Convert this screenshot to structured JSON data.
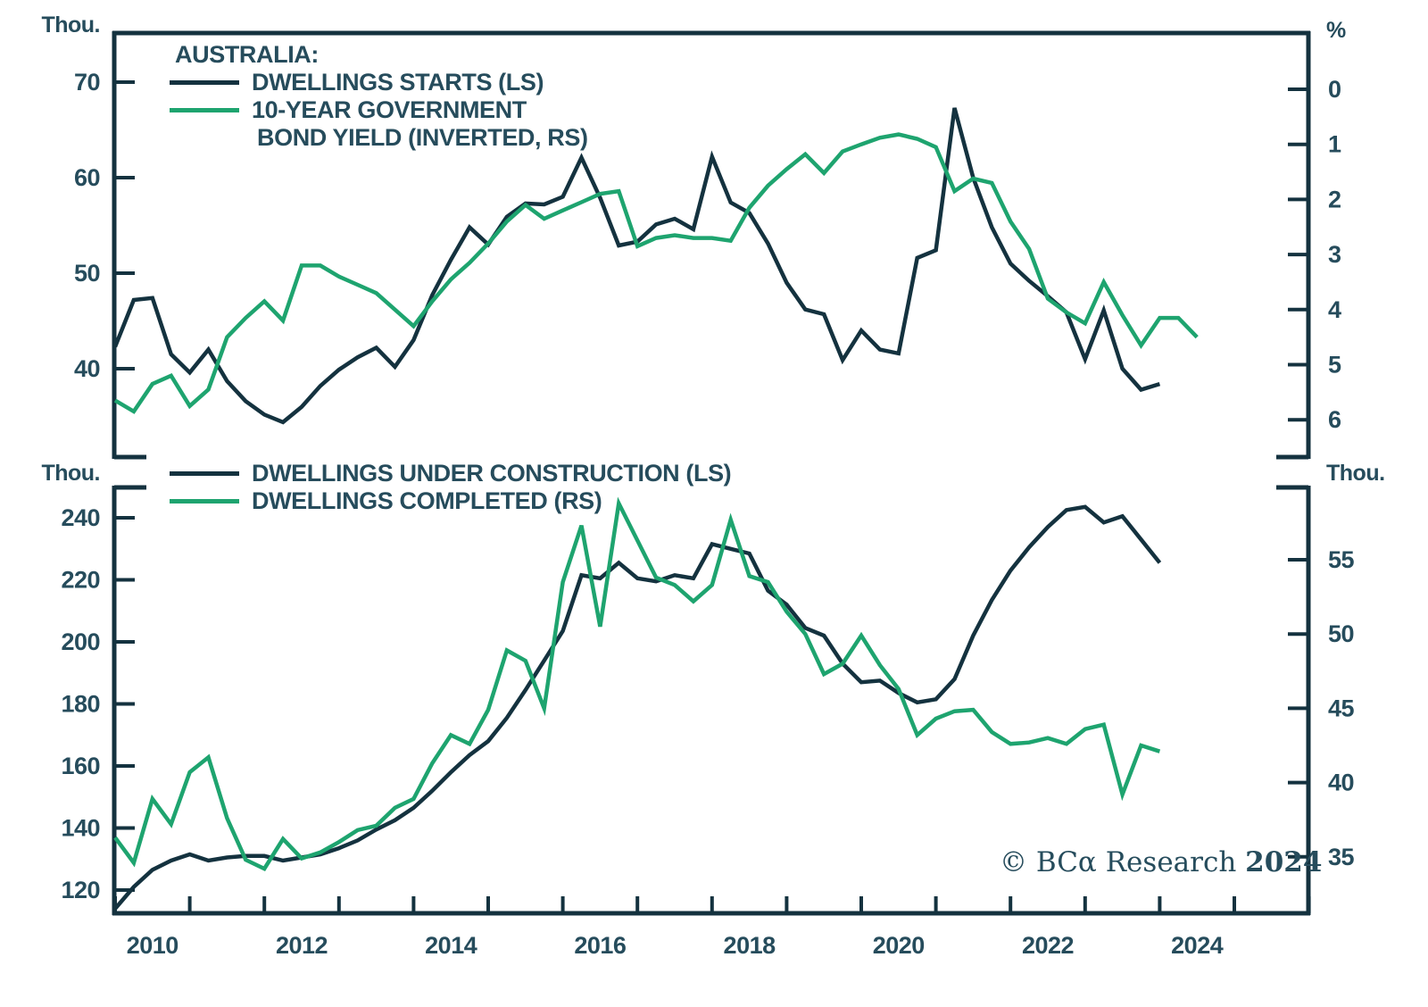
{
  "watermark": {
    "prefix": "© BCα Research",
    "year": "2024"
  },
  "colors": {
    "text": "#264C5C",
    "dark_line": "#14323F",
    "green_line": "#1EA46F",
    "background": "#FFFFFF"
  },
  "x_axis": {
    "tick_years": [
      2010,
      2011,
      2012,
      2013,
      2014,
      2015,
      2016,
      2017,
      2018,
      2019,
      2020,
      2021,
      2022,
      2023,
      2024,
      2025,
      2026
    ],
    "labels": [
      "2010",
      "2012",
      "2014",
      "2016",
      "2018",
      "2020",
      "2022",
      "2024"
    ]
  },
  "chart_data": [
    {
      "type": "line",
      "panel": "top",
      "title": "AUSTRALIA:",
      "legend_position": "top-left-inside",
      "left_axis": {
        "unit": "Thou.",
        "ticks": [
          70,
          60,
          50,
          40
        ],
        "range": [
          30,
          75
        ]
      },
      "right_axis": {
        "unit": "%",
        "ticks": [
          0,
          1,
          2,
          3,
          4,
          5,
          6
        ],
        "inverted": true
      },
      "series": [
        {
          "name": "DWELLINGS STARTS (LS)",
          "slug": "dwellings-starts",
          "legend_lines": [
            "DWELLINGS STARTS (LS)"
          ],
          "axis": "left",
          "color": "dark",
          "x_start": 2010.0,
          "x_step": 0.25,
          "values": [
            42.3,
            47.2,
            47.4,
            41.5,
            39.6,
            42.0,
            38.7,
            36.6,
            35.2,
            34.4,
            36.0,
            38.2,
            39.9,
            41.2,
            42.2,
            40.2,
            43.0,
            47.7,
            51.4,
            54.8,
            53.0,
            55.9,
            57.3,
            57.2,
            58.0,
            62.1,
            57.9,
            52.9,
            53.3,
            55.1,
            55.7,
            54.6,
            62.2,
            57.4,
            56.3,
            53.1,
            49.0,
            46.2,
            45.7,
            40.9,
            44.0,
            42.0,
            41.6,
            51.6,
            52.4,
            67.3,
            60.0,
            54.8,
            51.0,
            49.2,
            47.6,
            45.9,
            41.0,
            46.1,
            40.0,
            37.8,
            38.4
          ]
        },
        {
          "name": "10-YEAR GOVERNMENT BOND YIELD (INVERTED, RS)",
          "slug": "bond-yield",
          "legend_lines": [
            "10-YEAR GOVERNMENT",
            "BOND YIELD (INVERTED, RS)"
          ],
          "axis": "right",
          "color": "green",
          "x_start": 2010.0,
          "x_step": 0.25,
          "values": [
            5.65,
            5.85,
            5.35,
            5.2,
            5.75,
            5.45,
            4.5,
            4.15,
            3.85,
            4.2,
            3.2,
            3.2,
            3.4,
            3.55,
            3.7,
            4.0,
            4.3,
            3.85,
            3.45,
            3.15,
            2.8,
            2.4,
            2.1,
            2.35,
            2.2,
            2.05,
            1.9,
            1.85,
            2.85,
            2.7,
            2.65,
            2.7,
            2.7,
            2.75,
            2.15,
            1.75,
            1.45,
            1.18,
            1.52,
            1.13,
            1.0,
            0.88,
            0.82,
            0.9,
            1.05,
            1.85,
            1.62,
            1.7,
            2.4,
            2.9,
            3.8,
            4.05,
            4.25,
            3.5,
            4.1,
            4.65,
            4.15,
            4.15,
            4.5
          ]
        }
      ]
    },
    {
      "type": "line",
      "panel": "bottom",
      "title": "",
      "legend_position": "top-left-inside",
      "left_axis": {
        "unit": "Thou.",
        "ticks": [
          240,
          220,
          200,
          180,
          160,
          140,
          120
        ],
        "range": [
          112,
          252
        ]
      },
      "right_axis": {
        "unit": "Thou.",
        "ticks": [
          55,
          50,
          45,
          40,
          35
        ],
        "range": [
          33,
          59
        ]
      },
      "series": [
        {
          "name": "DWELLINGS UNDER CONSTRUCTION (LS)",
          "slug": "under-construction",
          "legend_lines": [
            "DWELLINGS UNDER CONSTRUCTION (LS)"
          ],
          "axis": "left",
          "color": "dark",
          "x_start": 2010.0,
          "x_step": 0.25,
          "values": [
            114,
            121,
            126.5,
            129.5,
            131.5,
            129.5,
            130.5,
            131,
            131,
            129.5,
            130.5,
            131.5,
            133.5,
            136,
            139.5,
            142.5,
            146.5,
            152,
            158,
            163.5,
            168,
            175.5,
            184.5,
            194,
            203.5,
            221.5,
            220.5,
            225.5,
            220.5,
            219.5,
            221.5,
            220.5,
            231.5,
            230,
            228.5,
            216.5,
            212,
            204.5,
            202,
            193,
            187,
            187.5,
            183.5,
            180.5,
            181.5,
            188,
            202,
            213.5,
            223,
            230.5,
            237,
            242.5,
            243.5,
            238.5,
            240.5,
            233,
            225.5
          ]
        },
        {
          "name": "DWELLINGS COMPLETED (RS)",
          "slug": "completed",
          "legend_lines": [
            "DWELLINGS COMPLETED (RS)"
          ],
          "axis": "right",
          "color": "green",
          "x_start": 2010.0,
          "x_step": 0.25,
          "values": [
            36.3,
            34.6,
            38.9,
            37.2,
            40.7,
            41.7,
            37.6,
            34.8,
            34.2,
            36.2,
            34.9,
            35.3,
            36.0,
            36.8,
            37.1,
            38.3,
            38.9,
            41.3,
            43.2,
            42.6,
            44.9,
            48.9,
            48.2,
            45.0,
            53.5,
            57.3,
            50.5,
            58.8,
            56.3,
            53.8,
            53.3,
            52.2,
            53.3,
            57.7,
            53.9,
            53.5,
            51.5,
            50.0,
            47.3,
            48.0,
            49.9,
            47.9,
            46.3,
            43.2,
            44.3,
            44.8,
            44.9,
            43.4,
            42.6,
            42.7,
            43.0,
            42.6,
            43.6,
            43.9,
            39.2,
            42.5,
            42.1
          ]
        }
      ]
    }
  ]
}
